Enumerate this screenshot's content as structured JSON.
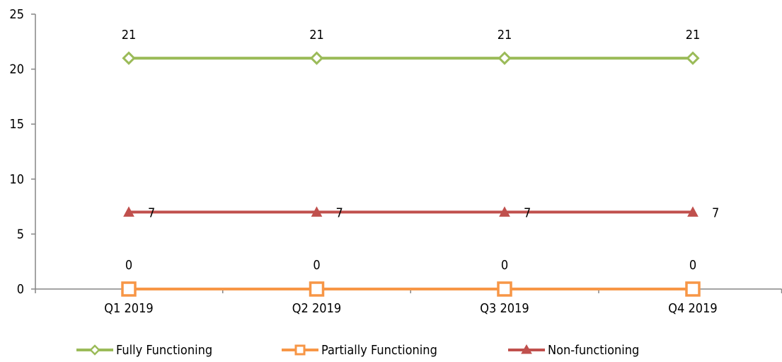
{
  "chart_data": {
    "type": "line",
    "categories": [
      "Q1 2019",
      "Q2 2019",
      "Q3 2019",
      "Q4 2019"
    ],
    "ylim": [
      0,
      25
    ],
    "yticks": [
      0,
      5,
      10,
      15,
      20,
      25
    ],
    "grid": false,
    "legend_position": "bottom",
    "series": [
      {
        "name": "Fully Functioning",
        "values": [
          21,
          21,
          21,
          21
        ],
        "color": "#9BBB59",
        "marker": "diamond",
        "data_labels": [
          "21",
          "21",
          "21",
          "21"
        ]
      },
      {
        "name": "Partially Functioning",
        "values": [
          0,
          0,
          0,
          0
        ],
        "color": "#F79646",
        "marker": "square",
        "data_labels": [
          "0",
          "0",
          "0",
          "0"
        ]
      },
      {
        "name": "Non-functioning",
        "values": [
          7,
          7,
          7,
          7
        ],
        "color": "#C0504D",
        "marker": "triangle",
        "data_labels": [
          "7",
          "7",
          "7",
          "7"
        ]
      }
    ]
  }
}
